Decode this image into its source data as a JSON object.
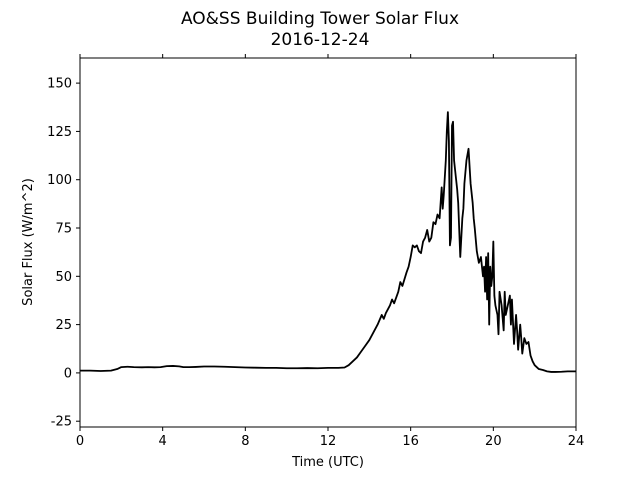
{
  "chart_data": {
    "type": "line",
    "title": "AO&SS Building Tower Solar Flux",
    "subtitle": "2016-12-24",
    "xlabel": "Time (UTC)",
    "ylabel": "Solar Flux (W/m^2)",
    "xlim": [
      0,
      24
    ],
    "ylim": [
      -28,
      163
    ],
    "xticks": [
      0,
      4,
      8,
      12,
      16,
      20,
      24
    ],
    "yticks": [
      -25,
      0,
      25,
      50,
      75,
      100,
      125,
      150
    ],
    "grid": false,
    "line_color": "#000000",
    "series": [
      {
        "x": [
          0,
          0.5,
          1,
          1.5,
          1.8,
          2,
          2.3,
          2.6,
          3,
          3.3,
          3.6,
          3.9,
          4.2,
          4.5,
          4.8,
          5,
          5.3,
          5.6,
          6,
          6.5,
          7,
          7.5,
          8,
          8.5,
          9,
          9.5,
          10,
          10.5,
          11,
          11.5,
          12,
          12.5,
          12.8,
          13,
          13.2,
          13.4,
          13.6,
          13.8,
          14,
          14.2,
          14.4,
          14.6,
          14.7,
          14.8,
          15,
          15.1,
          15.2,
          15.4,
          15.5,
          15.6,
          15.8,
          15.9,
          16,
          16.1,
          16.2,
          16.3,
          16.4,
          16.5,
          16.6,
          16.7,
          16.8,
          16.9,
          17,
          17.1,
          17.2,
          17.3,
          17.4,
          17.5,
          17.55,
          17.6,
          17.7,
          17.75,
          17.8,
          17.85,
          17.9,
          17.95,
          18,
          18.05,
          18.1,
          18.15,
          18.2,
          18.25,
          18.3,
          18.4,
          18.5,
          18.55,
          18.6,
          18.7,
          18.8,
          18.9,
          19,
          19.05,
          19.1,
          19.2,
          19.3,
          19.4,
          19.5,
          19.55,
          19.6,
          19.65,
          19.7,
          19.75,
          19.8,
          19.85,
          19.9,
          19.95,
          20,
          20.05,
          20.1,
          20.2,
          20.25,
          20.3,
          20.4,
          20.5,
          20.55,
          20.6,
          20.7,
          20.8,
          20.85,
          20.9,
          21,
          21.1,
          21.15,
          21.2,
          21.3,
          21.35,
          21.4,
          21.5,
          21.6,
          21.7,
          21.8,
          21.9,
          22,
          22.2,
          22.4,
          22.6,
          22.8,
          23,
          23.3,
          23.6,
          24
        ],
        "y": [
          1.2,
          1.2,
          1,
          1.2,
          2,
          3,
          3.2,
          3,
          2.9,
          3,
          2.9,
          3,
          3.5,
          3.6,
          3.4,
          3,
          3,
          3.1,
          3.3,
          3.3,
          3.2,
          3,
          2.8,
          2.7,
          2.6,
          2.6,
          2.4,
          2.4,
          2.5,
          2.4,
          2.6,
          2.6,
          2.8,
          4,
          6,
          8,
          11,
          14,
          17,
          21,
          25,
          30,
          28,
          31,
          35,
          38,
          36,
          42,
          47,
          45,
          52,
          55,
          60,
          66,
          65,
          66,
          63,
          62,
          68,
          70,
          74,
          68,
          70,
          78,
          77,
          82,
          80,
          96,
          85,
          92,
          110,
          125,
          135,
          120,
          66,
          70,
          128,
          130,
          110,
          105,
          100,
          95,
          88,
          60,
          80,
          85,
          98,
          110,
          116,
          98,
          88,
          80,
          75,
          63,
          57,
          60,
          50,
          55,
          42,
          60,
          38,
          62,
          25,
          55,
          45,
          50,
          68,
          40,
          35,
          30,
          20,
          42,
          35,
          22,
          42,
          30,
          35,
          40,
          25,
          38,
          15,
          30,
          22,
          12,
          25,
          18,
          10,
          18,
          15,
          16,
          9,
          6,
          4,
          2,
          1.5,
          0.8,
          0.5,
          0.5,
          0.6,
          0.8,
          0.8
        ]
      }
    ]
  }
}
